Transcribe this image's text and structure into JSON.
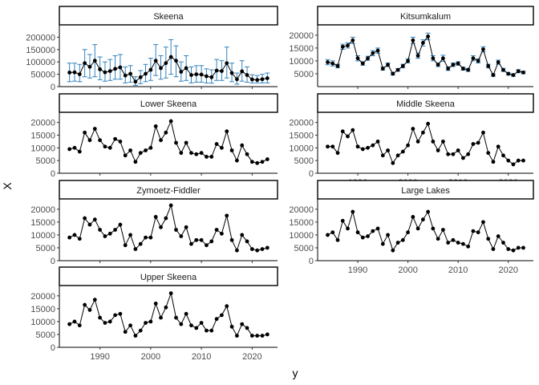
{
  "chart_data": {
    "type": "line",
    "xlabel": "y",
    "ylabel": "X",
    "xlim": [
      1982,
      2025
    ],
    "x_ticks": [
      1990,
      2000,
      2010,
      2020
    ],
    "colors": {
      "line": "#000000",
      "point": "#000000",
      "errorbar": "#3182bd",
      "strip_border": "#000000",
      "axis": "#000000"
    },
    "x": [
      1984,
      1985,
      1986,
      1987,
      1988,
      1989,
      1990,
      1991,
      1992,
      1993,
      1994,
      1995,
      1996,
      1997,
      1998,
      1999,
      2000,
      2001,
      2002,
      2003,
      2004,
      2005,
      2006,
      2007,
      2008,
      2009,
      2010,
      2011,
      2012,
      2013,
      2014,
      2015,
      2016,
      2017,
      2018,
      2019,
      2020,
      2021,
      2022,
      2023
    ],
    "panels": [
      {
        "title": "Skeena",
        "ylim": [
          0,
          250000
        ],
        "y_ticks": [
          0,
          50000,
          100000,
          150000,
          200000
        ],
        "has_errorbars": true,
        "values": [
          57000,
          58000,
          50000,
          95000,
          80000,
          105000,
          70000,
          58000,
          63000,
          72000,
          78000,
          45000,
          52000,
          20000,
          38000,
          52000,
          68000,
          105000,
          75000,
          95000,
          120000,
          105000,
          60000,
          75000,
          47000,
          50000,
          49000,
          42000,
          38000,
          65000,
          63000,
          95000,
          55000,
          30000,
          62000,
          47000,
          29000,
          27000,
          30000,
          34000
        ],
        "lower": [
          20000,
          22000,
          20000,
          40000,
          35000,
          40000,
          28000,
          22000,
          25000,
          30000,
          30000,
          15000,
          18000,
          5000,
          12000,
          20000,
          25000,
          45000,
          30000,
          35000,
          50000,
          40000,
          22000,
          25000,
          15000,
          18000,
          18000,
          15000,
          14000,
          25000,
          25000,
          35000,
          20000,
          10000,
          22000,
          18000,
          15000,
          15000,
          15000,
          15000
        ],
        "upper": [
          95000,
          95000,
          90000,
          150000,
          130000,
          170000,
          120000,
          100000,
          110000,
          125000,
          130000,
          80000,
          85000,
          40000,
          65000,
          90000,
          115000,
          170000,
          125000,
          160000,
          190000,
          165000,
          100000,
          125000,
          80000,
          85000,
          85000,
          72000,
          68000,
          110000,
          105000,
          160000,
          95000,
          55000,
          105000,
          80000,
          48000,
          45000,
          50000,
          55000
        ]
      },
      {
        "title": "Kitsumkalum",
        "ylim": [
          0,
          24000
        ],
        "y_ticks": [
          5000,
          10000,
          15000,
          20000
        ],
        "has_errorbars": true,
        "values": [
          9500,
          9000,
          8000,
          15500,
          16000,
          18000,
          11000,
          9000,
          11000,
          13000,
          14000,
          7000,
          8500,
          5000,
          6500,
          8000,
          10000,
          18000,
          12000,
          17000,
          19500,
          11000,
          8500,
          11000,
          7000,
          8500,
          9000,
          7000,
          6500,
          11000,
          10000,
          14500,
          8000,
          4500,
          9500,
          6500,
          5000,
          4500,
          6000,
          5500
        ],
        "lower": [
          8500,
          8000,
          7300,
          14500,
          15000,
          16800,
          10000,
          8300,
          10200,
          12000,
          13000,
          6400,
          7800,
          4500,
          6000,
          7300,
          9200,
          16800,
          11000,
          15800,
          18200,
          10000,
          7800,
          9800,
          6300,
          7800,
          8300,
          6400,
          5900,
          10000,
          9200,
          13500,
          7300,
          4000,
          8700,
          5900,
          4500,
          4000,
          5400,
          5000
        ],
        "upper": [
          10500,
          10000,
          8700,
          16500,
          17000,
          19200,
          12000,
          9700,
          11800,
          14000,
          15000,
          7600,
          9200,
          5500,
          7000,
          8700,
          10800,
          19200,
          13000,
          18200,
          20800,
          12000,
          9200,
          12200,
          7700,
          9200,
          9700,
          7600,
          7100,
          12000,
          10800,
          15500,
          8700,
          5000,
          10300,
          7100,
          5500,
          5000,
          6600,
          6000
        ]
      },
      {
        "title": "Lower Skeena",
        "ylim": [
          0,
          24000
        ],
        "y_ticks": [
          0,
          5000,
          10000,
          15000,
          20000
        ],
        "has_errorbars": false,
        "values": [
          9500,
          10000,
          8500,
          16000,
          13000,
          17500,
          13000,
          10500,
          10000,
          13500,
          12500,
          7000,
          9000,
          4500,
          8000,
          9000,
          10000,
          18500,
          13000,
          16000,
          20500,
          12000,
          8000,
          12000,
          8000,
          7500,
          8000,
          6500,
          6500,
          11500,
          10000,
          16500,
          9000,
          5000,
          11000,
          7500,
          4500,
          4000,
          4500,
          5500
        ]
      },
      {
        "title": "Middle Skeena",
        "ylim": [
          0,
          24000
        ],
        "y_ticks": [
          0,
          5000,
          10000,
          15000,
          20000
        ],
        "has_errorbars": false,
        "values": [
          10500,
          10500,
          8000,
          16500,
          14500,
          17000,
          10500,
          9500,
          10000,
          11000,
          12500,
          7000,
          9000,
          4000,
          7000,
          8500,
          11000,
          17500,
          12500,
          16000,
          19500,
          12500,
          9000,
          12500,
          7500,
          7500,
          9000,
          6000,
          7500,
          11500,
          12000,
          16000,
          8000,
          4500,
          10500,
          7000,
          5000,
          3500,
          5000,
          5000
        ]
      },
      {
        "title": "Zymoetz-Fiddler",
        "ylim": [
          0,
          24000
        ],
        "y_ticks": [
          0,
          5000,
          10000,
          15000,
          20000
        ],
        "has_errorbars": false,
        "values": [
          9000,
          10000,
          8500,
          16500,
          14000,
          16000,
          12000,
          9500,
          10500,
          12000,
          14000,
          6000,
          10000,
          4500,
          6500,
          9000,
          9000,
          17000,
          13000,
          16500,
          21500,
          12000,
          9500,
          13000,
          6500,
          8000,
          8000,
          6000,
          7500,
          12000,
          10500,
          17500,
          8000,
          4000,
          10000,
          7500,
          4500,
          4000,
          4500,
          5000
        ]
      },
      {
        "title": "Large Lakes",
        "ylim": [
          0,
          24000
        ],
        "y_ticks": [
          0,
          5000,
          10000,
          15000,
          20000
        ],
        "has_errorbars": false,
        "values": [
          10000,
          11000,
          8000,
          15500,
          12500,
          19000,
          11000,
          9000,
          9500,
          11500,
          12500,
          6500,
          10000,
          4000,
          7000,
          8000,
          11000,
          17000,
          12500,
          16000,
          19000,
          12500,
          8500,
          12000,
          7000,
          8000,
          7000,
          6500,
          5500,
          11500,
          11000,
          15000,
          8500,
          4500,
          9500,
          7000,
          4500,
          4000,
          5000,
          5000
        ]
      },
      {
        "title": "Upper Skeena",
        "ylim": [
          0,
          24000
        ],
        "y_ticks": [
          0,
          5000,
          10000,
          15000,
          20000
        ],
        "has_errorbars": false,
        "values": [
          9000,
          10000,
          8500,
          16500,
          14500,
          18500,
          11500,
          9500,
          10000,
          12500,
          13000,
          6000,
          8500,
          4500,
          6500,
          9500,
          10000,
          17000,
          11500,
          15500,
          21000,
          11500,
          9000,
          13000,
          8500,
          7500,
          9500,
          6500,
          6500,
          11000,
          12500,
          16000,
          8000,
          4500,
          9000,
          7500,
          4500,
          4500,
          4500,
          5000
        ]
      }
    ]
  }
}
